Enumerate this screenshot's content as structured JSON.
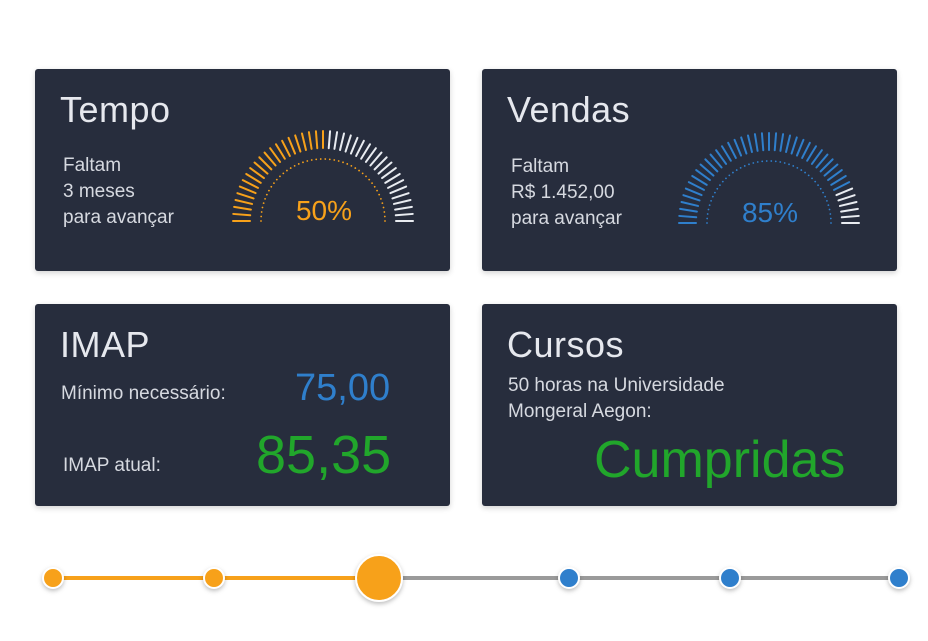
{
  "colors": {
    "card_bg": "#272d3d",
    "orange": "#f7a11a",
    "blue": "#2f7fcc",
    "green": "#21a62b",
    "grey_line": "#9a9a9a",
    "white_tick": "#e9ecf1"
  },
  "tempo": {
    "title": "Tempo",
    "lines": [
      "Faltam",
      "3 meses",
      "para avançar"
    ],
    "percent_label": "50%",
    "progress": 0.5
  },
  "vendas": {
    "title": "Vendas",
    "lines": [
      "Faltam",
      "R$ 1.452,00",
      "para avançar"
    ],
    "percent_label": "85%",
    "progress": 0.85
  },
  "imap": {
    "title": "IMAP",
    "min_label": "Mínimo necessário:",
    "min_value": "75,00",
    "current_label": "IMAP atual:",
    "current_value": "85,35"
  },
  "cursos": {
    "title": "Cursos",
    "lines": [
      "50 horas na Universidade",
      "Mongeral Aegon:"
    ],
    "status": "Cumpridas"
  },
  "timeline": {
    "steps": 6,
    "current_step": 3
  }
}
